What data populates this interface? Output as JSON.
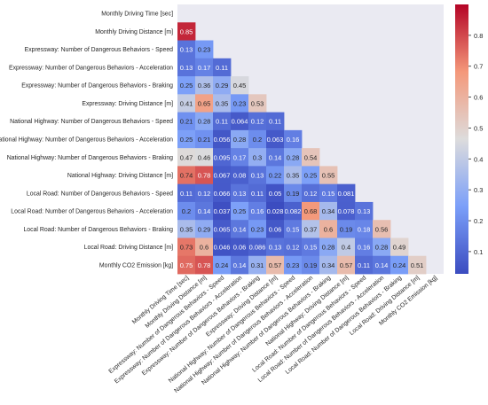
{
  "chart_data": {
    "type": "heatmap",
    "variables": [
      "Monthly Driving Time [sec]",
      "Monthly Driving Distance [m]",
      "Expressway: Number of Dangerous Behaviors - Speed",
      "Expressway: Number of Dangerous Behaviors - Acceleration",
      "Expressway: Number of Dangerous Behaviors - Braking",
      "Expressway: Driving Distance [m]",
      "National Highway: Number of Dangerous Behaviors - Speed",
      "National Highway: Number of Dangerous Behaviors - Acceleration",
      "National Highway: Number of Dangerous Behaviors - Braking",
      "National Highway: Driving Distance [m]",
      "Local Road: Number of Dangerous Behaviors - Speed",
      "Local Road: Number of Dangerous Behaviors - Acceleration",
      "Local Road: Number of Dangerous Behaviors - Braking",
      "Local Road: Driving Distance [m]",
      "Monthly CO2 Emission [kg]"
    ],
    "lower_triangle": [
      [],
      [
        0.85
      ],
      [
        0.13,
        0.23
      ],
      [
        0.13,
        0.17,
        0.11
      ],
      [
        0.25,
        0.36,
        0.29,
        0.45
      ],
      [
        0.41,
        0.65,
        0.35,
        0.23,
        0.53
      ],
      [
        0.21,
        0.28,
        0.11,
        0.064,
        0.12,
        0.11
      ],
      [
        0.25,
        0.21,
        0.056,
        0.28,
        0.2,
        0.063,
        0.16
      ],
      [
        0.47,
        0.46,
        0.095,
        0.17,
        0.3,
        0.14,
        0.28,
        0.54
      ],
      [
        0.74,
        0.78,
        0.067,
        0.08,
        0.13,
        0.22,
        0.35,
        0.25,
        0.55
      ],
      [
        0.11,
        0.12,
        0.066,
        0.13,
        0.11,
        0.05,
        0.19,
        0.12,
        0.15,
        0.081
      ],
      [
        0.2,
        0.14,
        0.037,
        0.25,
        0.16,
        0.028,
        0.082,
        0.68,
        0.34,
        0.078,
        0.13
      ],
      [
        0.35,
        0.29,
        0.065,
        0.14,
        0.23,
        0.06,
        0.15,
        0.37,
        0.6,
        0.19,
        0.18,
        0.56
      ],
      [
        0.73,
        0.6,
        0.046,
        0.06,
        0.086,
        0.13,
        0.12,
        0.15,
        0.28,
        0.4,
        0.16,
        0.28,
        0.49
      ],
      [
        0.75,
        0.78,
        0.24,
        0.14,
        0.31,
        0.57,
        0.23,
        0.19,
        0.34,
        0.57,
        0.11,
        0.14,
        0.24,
        0.51
      ]
    ],
    "colorbar": {
      "min": 0.028,
      "max": 0.9,
      "ticks": [
        0.1,
        0.2,
        0.3,
        0.4,
        0.5,
        0.6,
        0.7,
        0.8
      ]
    },
    "colormap": "coolwarm",
    "mask_color": "#eaeaf2"
  }
}
